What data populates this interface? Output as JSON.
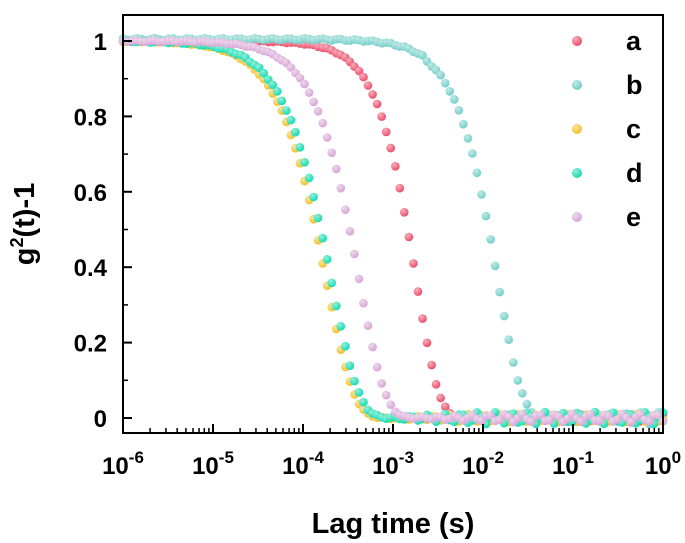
{
  "colors": {
    "a": "#ec4f6b",
    "b": "#75cfc9",
    "c": "#f2c22b",
    "d": "#14dcb1",
    "e": "#d8a7d6"
  },
  "chart_data": {
    "type": "scatter",
    "xlabel": "Lag time (s)",
    "ylabel_main": "g",
    "ylabel_sup": "2",
    "ylabel_rest": "(t)-1",
    "xscale": "log",
    "xlim": [
      1e-06,
      1
    ],
    "ylim": [
      -0.04,
      1.1
    ],
    "grid": false,
    "legend_position": "top-right",
    "x_ticks": [
      {
        "base": "10",
        "exp": "-6",
        "value": 1e-06
      },
      {
        "base": "10",
        "exp": "-5",
        "value": 1e-05
      },
      {
        "base": "10",
        "exp": "-4",
        "value": 0.0001
      },
      {
        "base": "10",
        "exp": "-3",
        "value": 0.001
      },
      {
        "base": "10",
        "exp": "-2",
        "value": 0.01
      },
      {
        "base": "10",
        "exp": "-1",
        "value": 0.1
      },
      {
        "base": "10",
        "exp": "0",
        "value": 1
      }
    ],
    "y_ticks": [
      {
        "label": "0",
        "value": 0
      },
      {
        "label": "0.2",
        "value": 0.2
      },
      {
        "label": "0.4",
        "value": 0.4
      },
      {
        "label": "0.6",
        "value": 0.6
      },
      {
        "label": "0.8",
        "value": 0.8
      },
      {
        "label": "1",
        "value": 1
      }
    ],
    "series": [
      {
        "name": "a",
        "color": "#ec4f6b",
        "tau": 0.0018,
        "beta": 1.7,
        "x_start": 1e-06
      },
      {
        "name": "b",
        "color": "#75cfc9",
        "tau": 0.0145,
        "beta": 1.6,
        "x_start": 1e-06
      },
      {
        "name": "c",
        "color": "#f2c22b",
        "tau": 0.00018,
        "beta": 1.4,
        "x_start": 1e-06
      },
      {
        "name": "d",
        "color": "#14dcb1",
        "tau": 0.000205,
        "beta": 1.4,
        "x_start": 1e-06
      },
      {
        "name": "e",
        "color": "#d8a7d6",
        "tau": 0.00042,
        "beta": 1.5,
        "x_start": 1e-06
      }
    ]
  }
}
